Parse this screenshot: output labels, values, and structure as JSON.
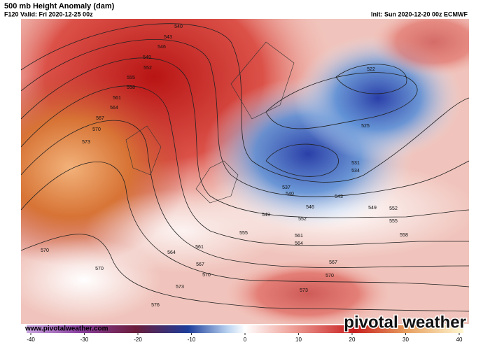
{
  "header": {
    "title": "500 mb Height Anomaly (dam)",
    "valid": "F120 Valid: Fri 2020-12-25 00z",
    "init": "Init: Sun 2020-12-20 00z ECMWF"
  },
  "contour_labels": [
    540,
    543,
    546,
    549,
    552,
    555,
    558,
    561,
    564,
    567,
    570,
    573,
    522,
    525,
    531,
    534,
    537,
    540,
    543,
    546,
    549,
    552,
    549,
    552,
    555,
    555,
    558,
    561,
    561,
    564,
    564,
    567,
    567,
    570,
    570,
    570,
    570,
    573,
    573,
    576
  ],
  "colorbar": {
    "lim": [
      -40,
      40
    ],
    "ticks": [
      -40,
      -30,
      -20,
      -10,
      0,
      10,
      20,
      30,
      40
    ]
  },
  "watermark": "www.pivotalweather.com",
  "logo": "pivotal weather"
}
